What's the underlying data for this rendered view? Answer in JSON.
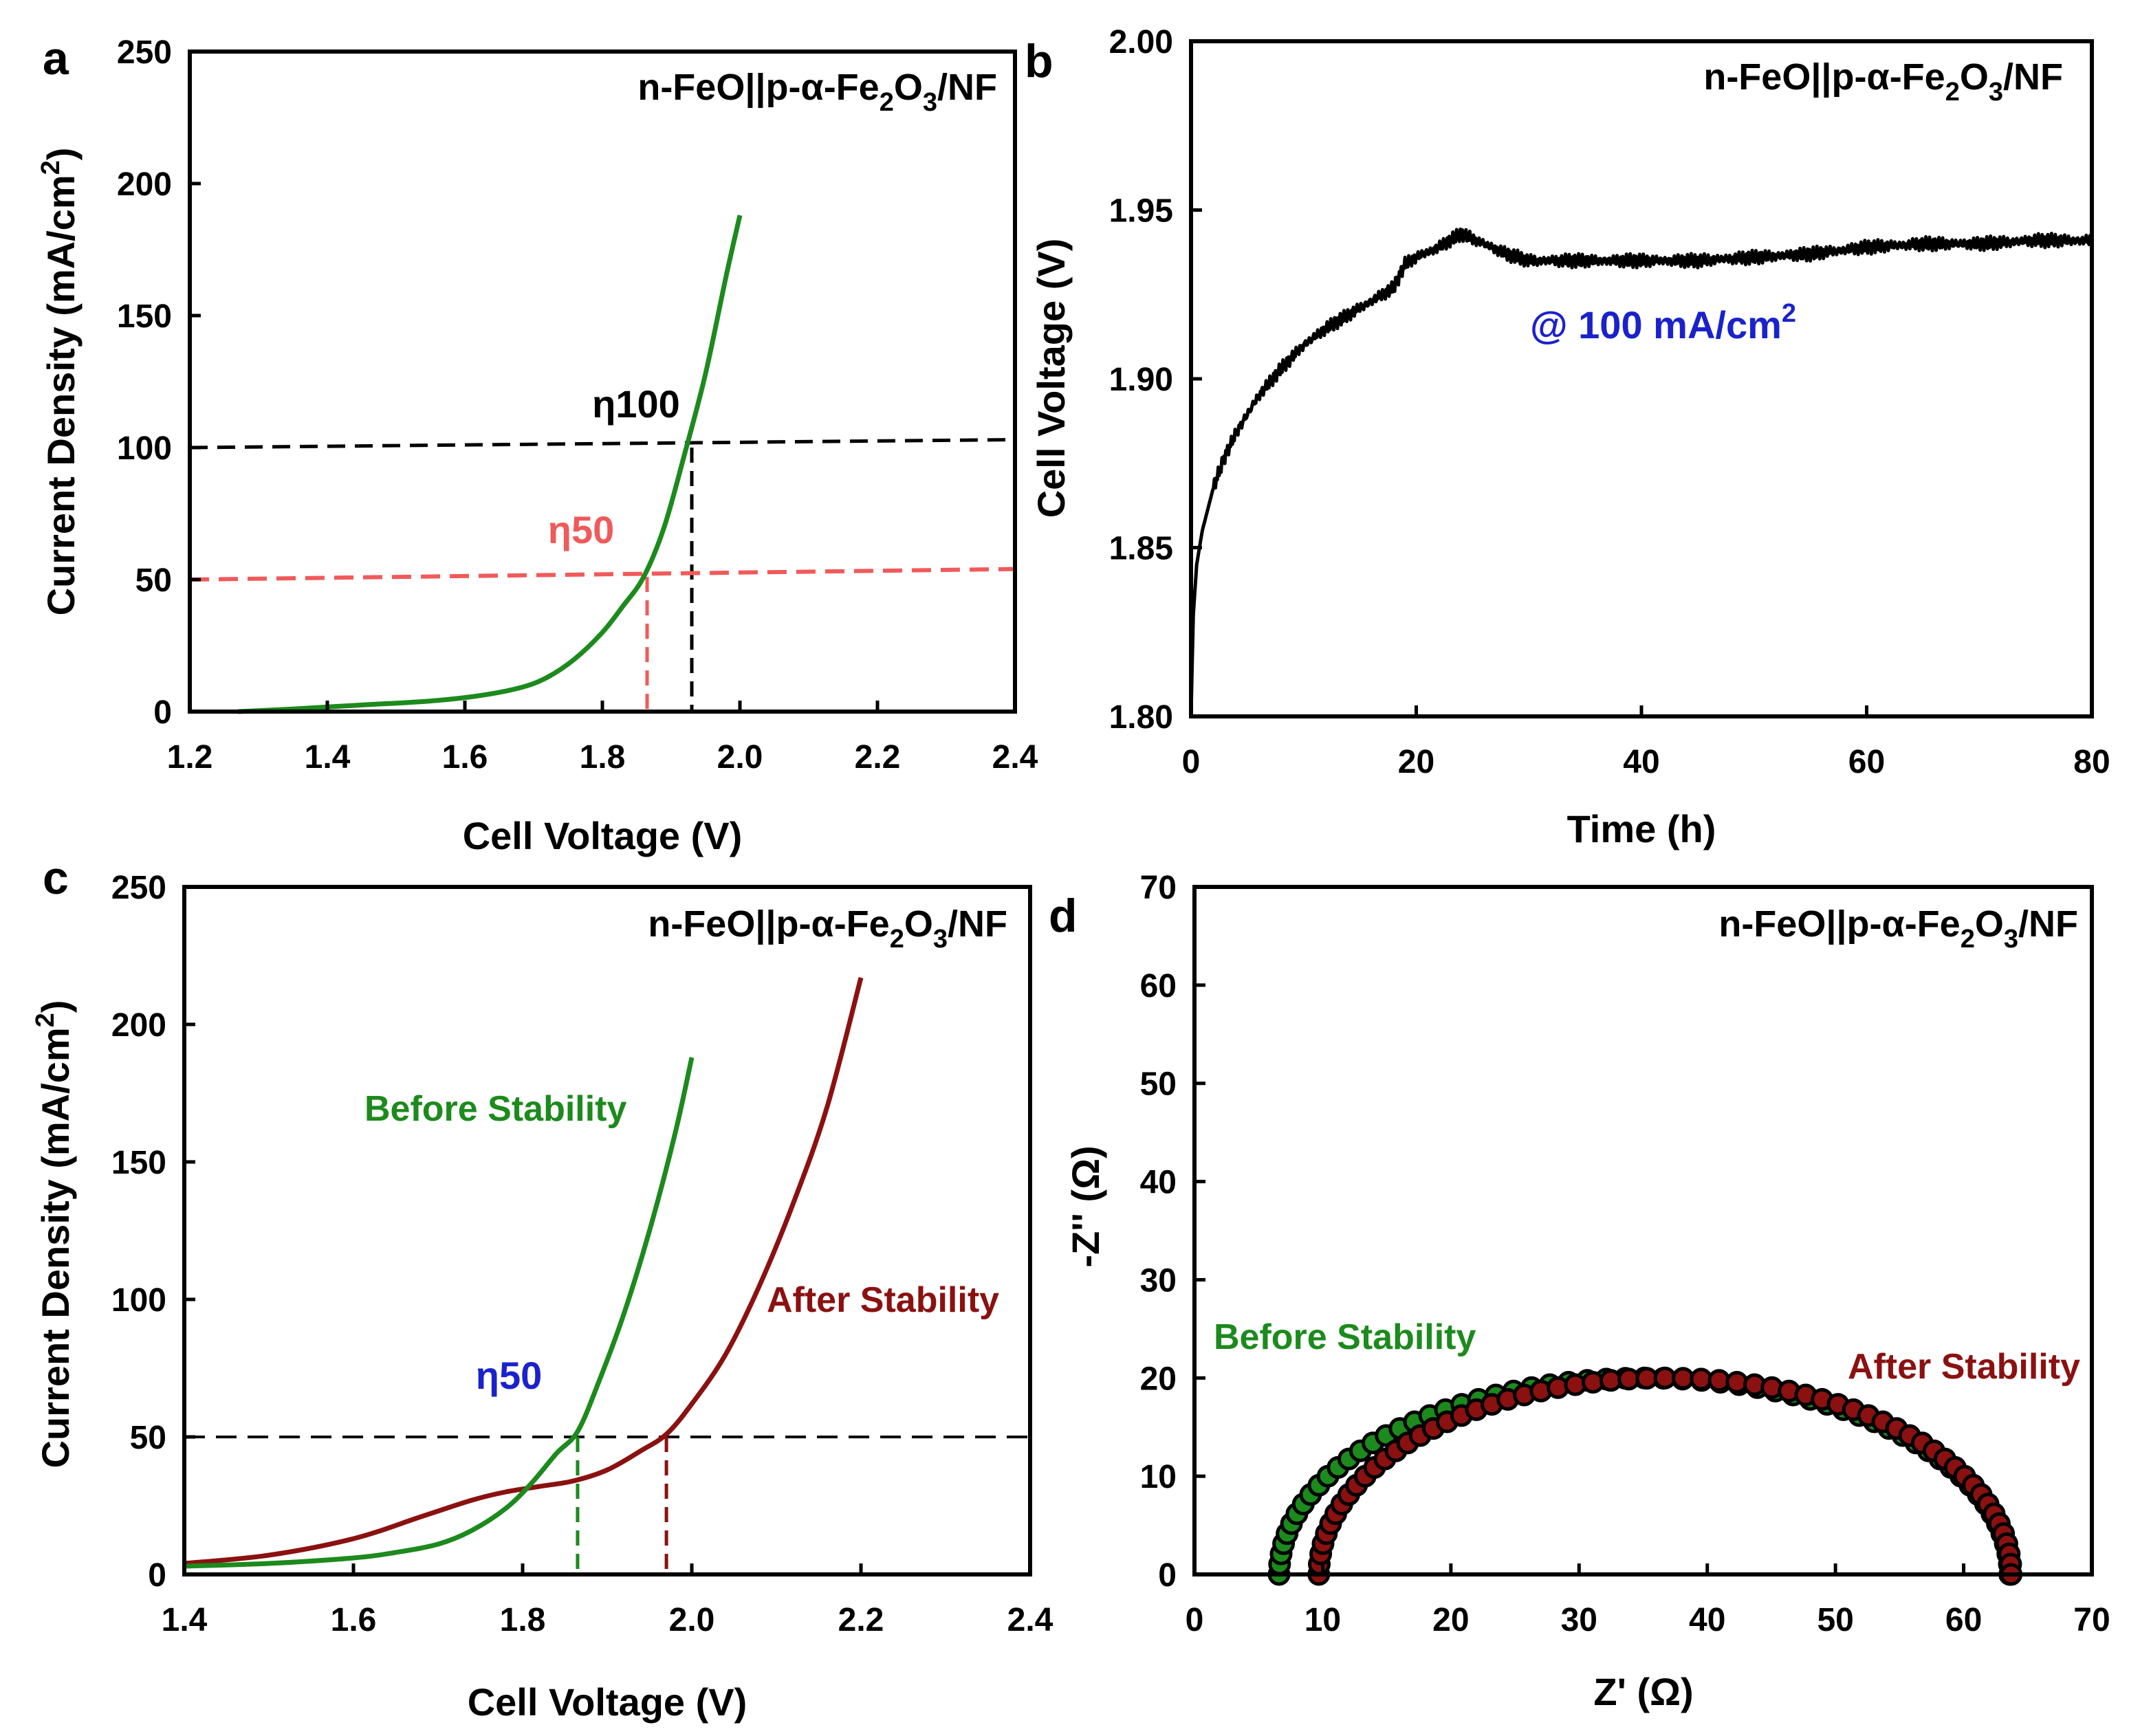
{
  "colors": {
    "green": "#1c8a1c",
    "darkred": "#8b1111",
    "salmon": "#f05a5a",
    "blue": "#1a22cc",
    "black": "#000000"
  },
  "chart_data": [
    {
      "panel": "a",
      "type": "line",
      "title": "",
      "sample_label": {
        "main": "n-FeO||p-α-Fe",
        "sub1": "2",
        "mid": "O",
        "sub2": "3",
        "tail": "/NF"
      },
      "xlabel": "Cell Voltage (V)",
      "ylabel": {
        "main": "Current Density (mA/cm",
        "sup": "2",
        "tail": ")"
      },
      "xlim": [
        1.2,
        2.4
      ],
      "ylim": [
        0,
        250
      ],
      "xticks": [
        "1.2",
        "1.4",
        "1.6",
        "1.8",
        "2.0",
        "2.2",
        "2.4"
      ],
      "yticks": [
        "0",
        "50",
        "100",
        "150",
        "200",
        "250"
      ],
      "series": [
        {
          "name": "n-FeO||p-α-Fe2O3/NF",
          "color": "#1c8a1c",
          "x": [
            1.27,
            1.35,
            1.45,
            1.55,
            1.62,
            1.68,
            1.72,
            1.76,
            1.8,
            1.83,
            1.86,
            1.89,
            1.92,
            1.95,
            1.98,
            2.0
          ],
          "y": [
            0,
            1,
            2.5,
            4,
            6,
            9,
            13,
            20,
            30,
            40,
            51,
            70,
            98,
            128,
            165,
            188
          ]
        }
      ],
      "reference_lines": [
        {
          "label": "η100",
          "y": 100,
          "x": 1.93,
          "color": "#000000"
        },
        {
          "label": "η50",
          "y": 50,
          "x": 1.865,
          "color": "#f05a5a"
        }
      ]
    },
    {
      "panel": "b",
      "type": "line",
      "sample_label": {
        "main": "n-FeO||p-α-Fe",
        "sub1": "2",
        "mid": "O",
        "sub2": "3",
        "tail": "/NF"
      },
      "annotation": {
        "main": "@ 100 mA/cm",
        "sup": "2"
      },
      "xlabel": "Time (h)",
      "ylabel": "Cell Voltage (V)",
      "xlim": [
        0,
        80
      ],
      "ylim": [
        1.8,
        2.0
      ],
      "xticks": [
        "0",
        "20",
        "40",
        "60",
        "80"
      ],
      "yticks": [
        "1.80",
        "1.85",
        "1.90",
        "1.95",
        "2.00"
      ],
      "series": [
        {
          "name": "stability @ 100 mA/cm2",
          "color": "#000000",
          "x": [
            0,
            0.2,
            0.5,
            1,
            2,
            3,
            4,
            6,
            8,
            10,
            12,
            14,
            16,
            18,
            19,
            20,
            22,
            24,
            26,
            28,
            30,
            35,
            40,
            45,
            50,
            55,
            60,
            65,
            70,
            75,
            80
          ],
          "y": [
            1.8,
            1.83,
            1.845,
            1.855,
            1.868,
            1.877,
            1.884,
            1.895,
            1.903,
            1.91,
            1.915,
            1.919,
            1.923,
            1.927,
            1.934,
            1.936,
            1.939,
            1.943,
            1.94,
            1.937,
            1.935,
            1.935,
            1.935,
            1.935,
            1.936,
            1.937,
            1.939,
            1.94,
            1.94,
            1.941,
            1.941
          ]
        }
      ]
    },
    {
      "panel": "c",
      "type": "line",
      "sample_label": {
        "main": "n-FeO||p-α-Fe",
        "sub1": "2",
        "mid": "O",
        "sub2": "3",
        "tail": "/NF"
      },
      "xlabel": "Cell Voltage (V)",
      "ylabel": {
        "main": "Current Density (mA/cm",
        "sup": "2",
        "tail": ")"
      },
      "xlim": [
        1.4,
        2.4
      ],
      "ylim": [
        0,
        250
      ],
      "xticks": [
        "1.4",
        "1.6",
        "1.8",
        "2.0",
        "2.2",
        "2.4"
      ],
      "yticks": [
        "0",
        "50",
        "100",
        "150",
        "200",
        "250"
      ],
      "series": [
        {
          "name": "Before Stability",
          "color": "#1c8a1c",
          "x": [
            1.4,
            1.5,
            1.6,
            1.65,
            1.7,
            1.74,
            1.78,
            1.81,
            1.84,
            1.865,
            1.89,
            1.92,
            1.95,
            1.98,
            2.0
          ],
          "y": [
            3,
            4,
            6,
            8,
            11,
            16,
            24,
            33,
            44,
            52,
            70,
            95,
            125,
            160,
            188
          ]
        },
        {
          "name": "After Stability",
          "color": "#8b1111",
          "x": [
            1.4,
            1.5,
            1.6,
            1.68,
            1.74,
            1.78,
            1.82,
            1.86,
            1.9,
            1.94,
            1.97,
            2.0,
            2.04,
            2.08,
            2.12,
            2.16,
            2.2
          ],
          "y": [
            4,
            7,
            13,
            21,
            27,
            30,
            32,
            34,
            38,
            45,
            51,
            62,
            80,
            105,
            135,
            170,
            217
          ]
        }
      ],
      "reference_lines": [
        {
          "label": "η50",
          "y": 50,
          "x_before": 1.865,
          "x_after": 1.97
        }
      ]
    },
    {
      "panel": "d",
      "type": "scatter",
      "sample_label": {
        "main": "n-FeO||p-α-Fe",
        "sub1": "2",
        "mid": "O",
        "sub2": "3",
        "tail": "/NF"
      },
      "xlabel": "Z' (Ω)",
      "ylabel": "-Z'' (Ω)",
      "xlim": [
        0,
        70
      ],
      "ylim": [
        0,
        70
      ],
      "xticks": [
        "0",
        "10",
        "20",
        "30",
        "40",
        "50",
        "60",
        "70"
      ],
      "yticks": [
        "0",
        "10",
        "20",
        "30",
        "40",
        "50",
        "60",
        "70"
      ],
      "series": [
        {
          "name": "Before Stability",
          "color": "#1c8a1c",
          "center": 35.1,
          "radius": 28.5,
          "height": 20,
          "points": 60
        },
        {
          "name": "After Stability",
          "color": "#8b1111",
          "center": 36.7,
          "radius": 27.0,
          "height": 20,
          "points": 60
        }
      ]
    }
  ],
  "labels": {
    "before": "Before Stability",
    "after": "After Stability",
    "eta100": "η100",
    "eta50": "η50"
  }
}
